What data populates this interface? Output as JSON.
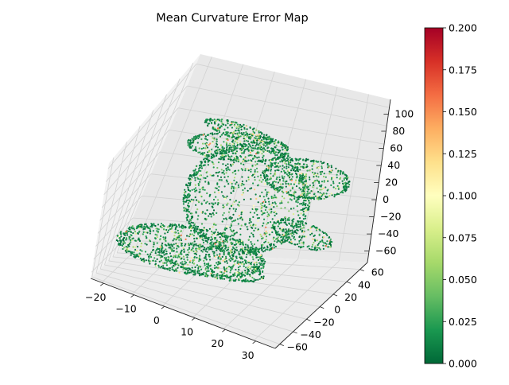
{
  "chart_data": {
    "type": "scatter",
    "projection": "3d",
    "title": "Mean Curvature Error Map",
    "xlabel": "",
    "ylabel": "",
    "zlabel": "",
    "x_ticks": [
      "−20",
      "−10",
      "0",
      "10",
      "20",
      "30"
    ],
    "y_ticks": [
      "−60",
      "−40",
      "−20",
      "0",
      "20",
      "40",
      "60"
    ],
    "z_ticks": [
      "100",
      "80",
      "60",
      "40",
      "20",
      "0",
      "−20",
      "−40",
      "−60"
    ],
    "xlim": [
      -28,
      33
    ],
    "ylim": [
      -70,
      65
    ],
    "zlim": [
      -70,
      110
    ],
    "grid": true,
    "colormap": "RdYlGn_r",
    "colormap_stops": [
      "#006837",
      "#1a9850",
      "#66bd63",
      "#a6d96a",
      "#d9ef8b",
      "#ffffbf",
      "#fee08b",
      "#fdae61",
      "#f46d43",
      "#d73027",
      "#a50026"
    ],
    "colorbar": {
      "min": 0.0,
      "max": 0.2,
      "ticks": [
        "0.000",
        "0.025",
        "0.050",
        "0.075",
        "0.100",
        "0.125",
        "0.150",
        "0.175",
        "0.200"
      ]
    },
    "description_of_points": "Dense point cloud of a folded/warped surface; most errors near 0.0–0.05 (green), with scattered higher values around 0.08–0.15 (yellow/orange) along ridges."
  }
}
